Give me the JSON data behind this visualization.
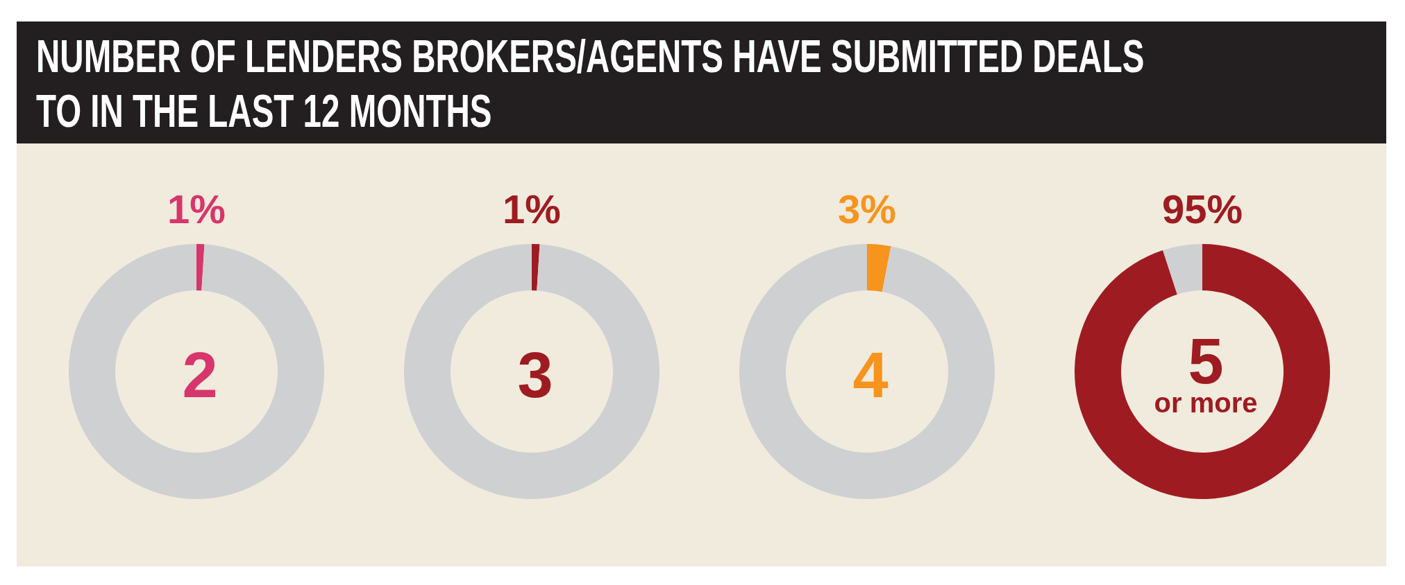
{
  "chart_data": [
    {
      "type": "other",
      "title": "NUMBER OF LENDERS BROKERS/AGENTS HAVE SUBMITTED DEALS TO IN THE LAST 12 MONTHS"
    },
    {
      "type": "donut",
      "title": "2",
      "categories": [
        null,
        null
      ],
      "values": [
        1,
        99
      ],
      "colors": [
        "#d6366b",
        "#cfd0d2"
      ],
      "value_labels": [
        "1%",
        null
      ]
    },
    {
      "type": "donut",
      "title": "3",
      "categories": [
        null,
        null
      ],
      "values": [
        1,
        99
      ],
      "colors": [
        "#9e1c21",
        "#cfd0d2"
      ],
      "value_labels": [
        "1%",
        null
      ]
    },
    {
      "type": "donut",
      "title": "4",
      "categories": [
        null,
        null
      ],
      "values": [
        3,
        97
      ],
      "colors": [
        "#f7941d",
        "#cfd0d2"
      ],
      "value_labels": [
        "3%",
        null
      ]
    },
    {
      "type": "donut",
      "title": "5 or more",
      "categories": [
        null,
        null
      ],
      "values": [
        95,
        5
      ],
      "colors": [
        "#9e1c21",
        "#cfd0d2"
      ],
      "value_labels": [
        "95%",
        null
      ]
    }
  ]
}
